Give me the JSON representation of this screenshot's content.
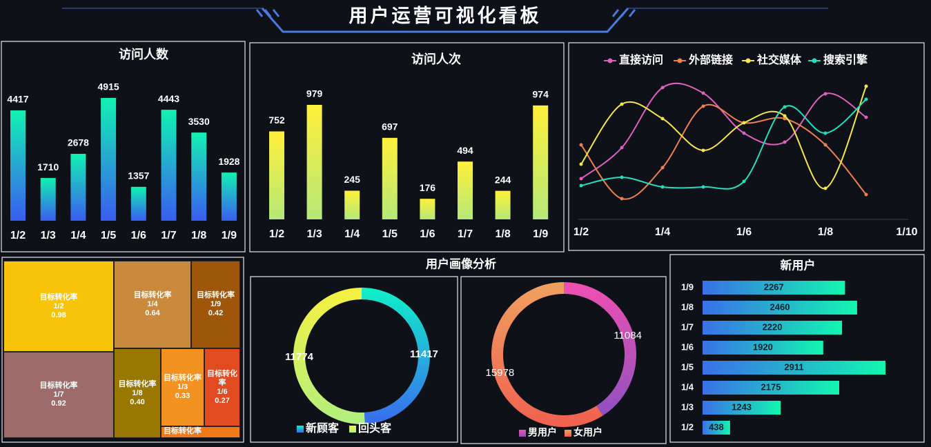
{
  "title": "用户运营可视化看板",
  "chart_data": [
    {
      "type": "bar",
      "title": "访问人数",
      "categories": [
        "1/2",
        "1/3",
        "1/4",
        "1/5",
        "1/6",
        "1/7",
        "1/8",
        "1/9"
      ],
      "values": [
        4417,
        1710,
        2678,
        4915,
        1357,
        4443,
        3530,
        1928
      ],
      "colors": [
        "#12f2b2",
        "#3a5cf0"
      ]
    },
    {
      "type": "bar",
      "title": "访问人次",
      "categories": [
        "1/2",
        "1/3",
        "1/4",
        "1/5",
        "1/6",
        "1/7",
        "1/8",
        "1/9"
      ],
      "values": [
        752,
        979,
        245,
        697,
        176,
        494,
        244,
        974
      ],
      "colors": [
        "#fff03a",
        "#b4e878"
      ]
    },
    {
      "type": "line",
      "categories": [
        "1/2",
        null,
        "1/4",
        null,
        "1/6",
        null,
        "1/8",
        null,
        "1/10"
      ],
      "smooth": true,
      "series": [
        {
          "name": "直接访问",
          "color": "#e060c0",
          "values": [
            25.5,
            48,
            91.5,
            87.5,
            58.5,
            52,
            87,
            70,
            null
          ]
        },
        {
          "name": "外部链接",
          "color": "#f08050",
          "values": [
            50,
            11,
            33.5,
            78,
            66,
            69,
            50,
            14,
            null
          ]
        },
        {
          "name": "社交媒体",
          "color": "#f4e84a",
          "values": [
            36,
            79.5,
            69,
            46,
            66,
            71,
            18.5,
            92.5,
            null
          ]
        },
        {
          "name": "搜索引擎",
          "color": "#20e0c0",
          "values": [
            20.5,
            26.5,
            19.5,
            19.5,
            23.5,
            77.5,
            58.5,
            83,
            null
          ]
        }
      ]
    },
    {
      "type": "treemap",
      "name": "目标转化率",
      "categories": [
        "1/2",
        "1/7",
        "1/4",
        "1/9",
        "1/8",
        "1/3",
        "1/6",
        null
      ],
      "values": [
        0.98,
        0.92,
        0.64,
        0.42,
        0.4,
        0.33,
        0.27,
        0.1
      ],
      "value_labels": [
        "0.98",
        "0.92",
        "0.64",
        "0.42",
        "0.40",
        "0.33",
        "0.27",
        null
      ],
      "colors": [
        "#f7c40a",
        "#9c6b6a",
        "#c98a3e",
        "#9e560a",
        "#9a7800",
        "#f39220",
        "#e24a22",
        "#f07a18"
      ]
    },
    {
      "type": "pie",
      "title": "用户画像分析",
      "categories": [
        "新顾客",
        "回头客"
      ],
      "values": [
        11417,
        11774
      ],
      "colors": [
        [
          "#10f0c8",
          "#3a6cf0"
        ],
        [
          "#f8f040",
          "#b0f080"
        ]
      ]
    },
    {
      "type": "pie",
      "categories": [
        "男用户",
        "女用户"
      ],
      "values": [
        11084,
        15978
      ],
      "colors": [
        [
          "#f050b0",
          "#9050c0"
        ],
        [
          "#f0a060",
          "#f06050"
        ]
      ]
    },
    {
      "type": "hbar",
      "title": "新用户",
      "categories": [
        "1/2",
        "1/3",
        "1/4",
        "1/5",
        "1/6",
        "1/7",
        "1/8",
        "1/9"
      ],
      "values": [
        438,
        1243,
        2175,
        2911,
        1920,
        2220,
        2460,
        2267
      ],
      "colors": [
        "#3a70e8",
        "#12f6b0"
      ]
    }
  ]
}
